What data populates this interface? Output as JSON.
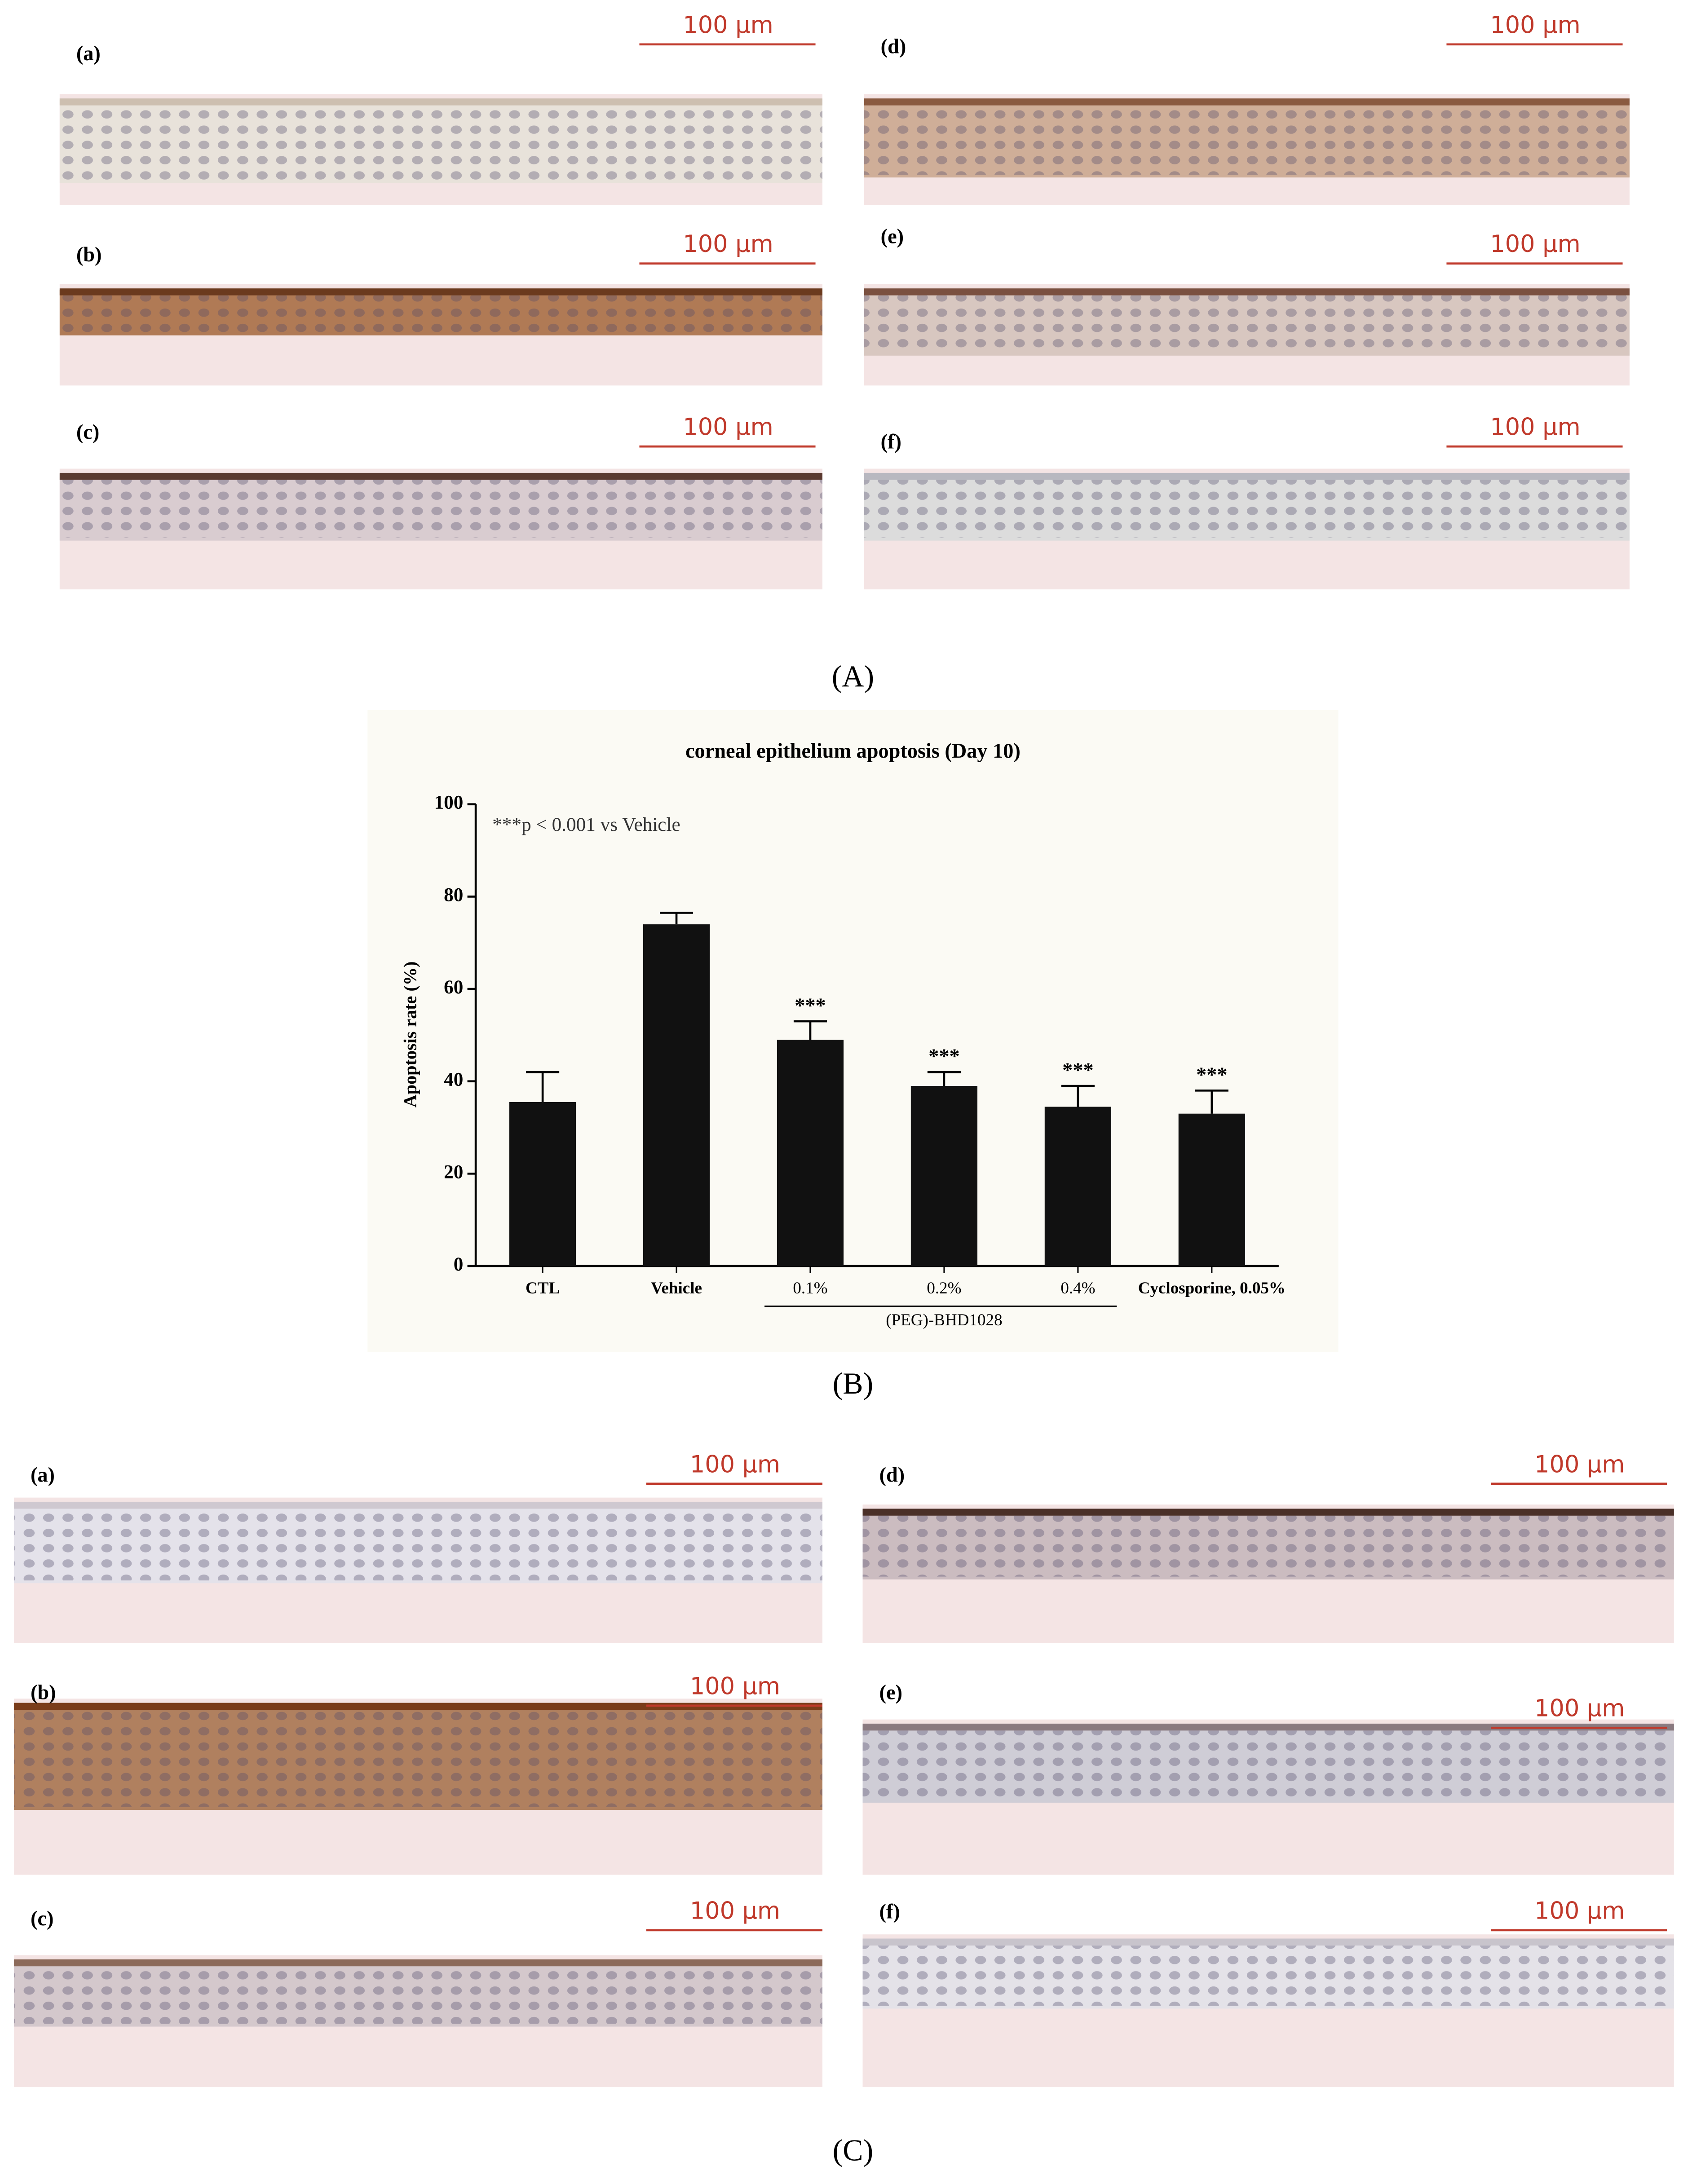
{
  "panels": {
    "A": {
      "label": "(A)",
      "images": [
        {
          "label": "(a)",
          "scale": "100 µm"
        },
        {
          "label": "(b)",
          "scale": "100 µm"
        },
        {
          "label": "(c)",
          "scale": "100 µm"
        },
        {
          "label": "(d)",
          "scale": "100 µm"
        },
        {
          "label": "(e)",
          "scale": "100 µm"
        },
        {
          "label": "(f)",
          "scale": "100 µm"
        }
      ]
    },
    "B": {
      "label": "(B)"
    },
    "C": {
      "label": "(C)",
      "images": [
        {
          "label": "(a)",
          "scale": "100 µm"
        },
        {
          "label": "(b)",
          "scale": "100 µm"
        },
        {
          "label": "(c)",
          "scale": "100 µm"
        },
        {
          "label": "(d)",
          "scale": "100 µm"
        },
        {
          "label": "(e)",
          "scale": "100 µm"
        },
        {
          "label": "(f)",
          "scale": "100 µm"
        }
      ]
    }
  },
  "chart_data": {
    "type": "bar",
    "title": "corneal epithelium apoptosis (Day 10)",
    "ylabel": "Apoptosis rate  (%)",
    "annotation": "***p < 0.001 vs Vehicle",
    "categories": [
      "CTL",
      "Vehicle",
      "0.1%",
      "0.2%",
      "0.4%",
      "Cyclosporine, 0.05%"
    ],
    "values": [
      35.5,
      74,
      49,
      39,
      34.5,
      33
    ],
    "errors": [
      6.5,
      2.5,
      4,
      3,
      4.5,
      5
    ],
    "significance": [
      null,
      null,
      "***",
      "***",
      "***",
      "***"
    ],
    "group_label": "(PEG)-BHD1028",
    "color": "#111111",
    "ylim": [
      0,
      100
    ],
    "yticks": [
      0,
      20,
      40,
      60,
      80,
      100
    ]
  }
}
